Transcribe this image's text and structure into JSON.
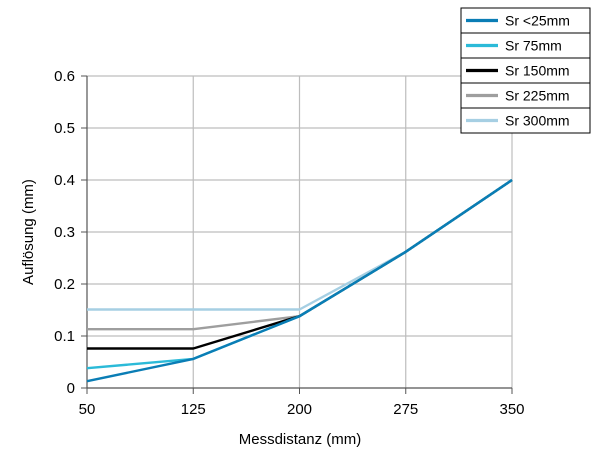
{
  "chart_data": {
    "type": "line",
    "title": "",
    "xlabel": "Messdistanz (mm)",
    "ylabel": "Auflösung (mm)",
    "xlim": [
      50,
      350
    ],
    "ylim": [
      0,
      0.6
    ],
    "grid": true,
    "legend_position": "top-right",
    "x_ticks": [
      50,
      125,
      200,
      275,
      350
    ],
    "x_tick_labels": [
      "50",
      "125",
      "200",
      "275",
      "350"
    ],
    "y_ticks": [
      0,
      0.1,
      0.2,
      0.3,
      0.4,
      0.5,
      0.6
    ],
    "y_tick_labels": [
      "0",
      "0.1",
      "0.2",
      "0.3",
      "0.4",
      "0.5",
      "0.6"
    ],
    "series": [
      {
        "name": "Sr 300mm",
        "color": "#a6cfe3",
        "x": [
          50,
          125,
          200,
          275,
          350
        ],
        "y": [
          0.151,
          0.151,
          0.151,
          0.262,
          0.4
        ]
      },
      {
        "name": "Sr 225mm",
        "color": "#9e9e9e",
        "x": [
          50,
          125,
          200,
          275,
          350
        ],
        "y": [
          0.113,
          0.113,
          0.138,
          0.262,
          0.4
        ]
      },
      {
        "name": "Sr 150mm",
        "color": "#000000",
        "x": [
          50,
          125,
          200,
          275,
          350
        ],
        "y": [
          0.076,
          0.076,
          0.138,
          0.262,
          0.4
        ]
      },
      {
        "name": "Sr 75mm",
        "color": "#2bbad8",
        "x": [
          50,
          125,
          200,
          275,
          350
        ],
        "y": [
          0.038,
          0.056,
          0.138,
          0.262,
          0.4
        ]
      },
      {
        "name": "Sr <25mm",
        "color": "#0a7db5",
        "x": [
          50,
          125,
          200,
          275,
          350
        ],
        "y": [
          0.013,
          0.056,
          0.138,
          0.262,
          0.4
        ]
      }
    ],
    "legend_order": [
      "Sr <25mm",
      "Sr 75mm",
      "Sr 150mm",
      "Sr 225mm",
      "Sr 300mm"
    ]
  }
}
